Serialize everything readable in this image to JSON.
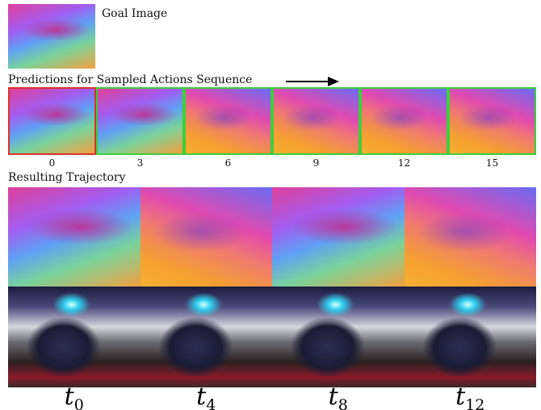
{
  "goal": {
    "label": "Goal Image"
  },
  "predictions": {
    "title": "Predictions for Sampled Actions Sequence",
    "frames": [
      {
        "label": "0",
        "border": "#d8342a"
      },
      {
        "label": "3",
        "border": "#3ccf3c"
      },
      {
        "label": "6",
        "border": "#3ccf3c"
      },
      {
        "label": "9",
        "border": "#3ccf3c"
      },
      {
        "label": "12",
        "border": "#3ccf3c"
      },
      {
        "label": "15",
        "border": "#3ccf3c"
      }
    ]
  },
  "trajectory": {
    "title": "Resulting Trajectory",
    "steps": [
      {
        "var": "t",
        "sub": "0"
      },
      {
        "var": "t",
        "sub": "4"
      },
      {
        "var": "t",
        "sub": "8"
      },
      {
        "var": "t",
        "sub": "12"
      }
    ]
  }
}
